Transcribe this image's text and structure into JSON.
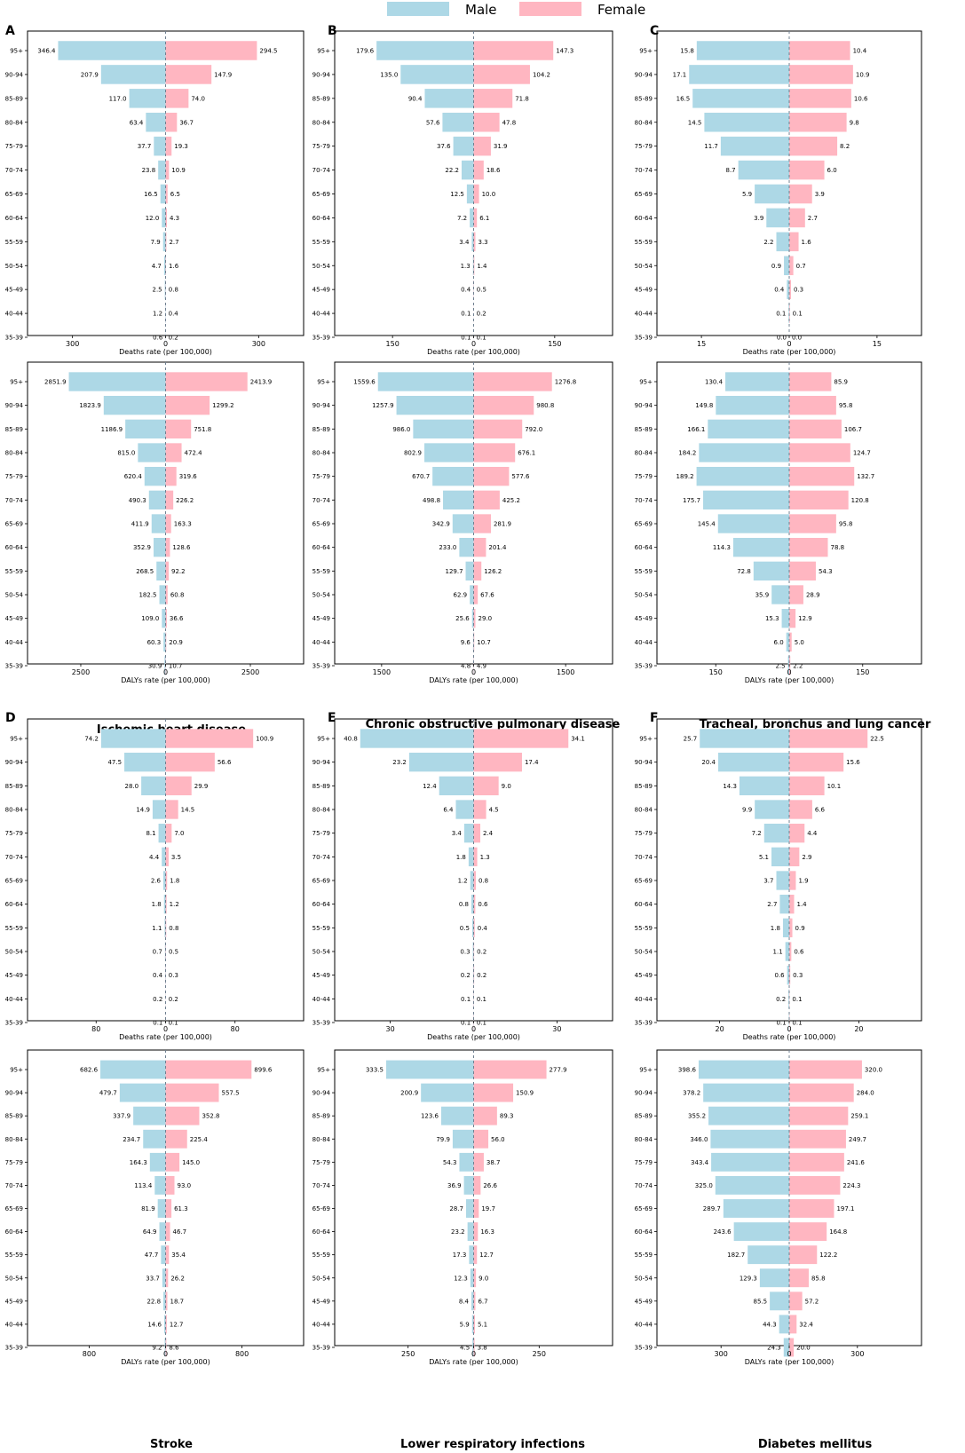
{
  "legend": {
    "placement": "top-center",
    "male_label": "Male",
    "female_label": "Female"
  },
  "colors": {
    "male": "#add8e6",
    "female": "#ffb6c1",
    "center_line": "#708090"
  },
  "age_groups": [
    "95+",
    "90-94",
    "85-89",
    "80-84",
    "75-79",
    "70-74",
    "65-69",
    "60-64",
    "55-59",
    "50-54",
    "45-49",
    "40-44",
    "35-39"
  ],
  "panel_titles": [
    "Ischemic heart disease",
    "Chronic obstructive pulmonary disease",
    "Tracheal, bronchus and lung cancer",
    "Stroke",
    "Lower respiratory infections",
    "Diabetes mellitus"
  ],
  "chart_data": [
    {
      "type": "bar",
      "panel": "A",
      "disease": "Ischemic heart disease",
      "xlabel": "Deaths rate (per 100,000)",
      "xlim": [
        -445,
        445
      ],
      "ticks": [
        "300",
        "0",
        "300"
      ],
      "tick_values": [
        -300,
        0,
        300
      ],
      "male": [
        "346.4",
        "207.9",
        "117.0",
        "63.4",
        "37.7",
        "23.8",
        "16.5",
        "12.0",
        "7.9",
        "4.7",
        "2.5",
        "1.2",
        "0.6"
      ],
      "female": [
        "294.5",
        "147.9",
        "74.0",
        "36.7",
        "19.3",
        "10.9",
        "6.5",
        "4.3",
        "2.7",
        "1.6",
        "0.8",
        "0.4",
        "0.2"
      ]
    },
    {
      "type": "bar",
      "panel": "B",
      "disease": "Chronic obstructive pulmonary disease",
      "xlabel": "Deaths rate (per 100,000)",
      "xlim": [
        -257,
        257
      ],
      "ticks": [
        "150",
        "0",
        "150"
      ],
      "tick_values": [
        -150,
        0,
        150
      ],
      "male": [
        "179.6",
        "135.0",
        "90.4",
        "57.6",
        "37.6",
        "22.2",
        "12.5",
        "7.2",
        "3.4",
        "1.3",
        "0.4",
        "0.1",
        "0.1"
      ],
      "female": [
        "147.3",
        "104.2",
        "71.8",
        "47.8",
        "31.9",
        "18.6",
        "10.0",
        "6.1",
        "3.3",
        "1.4",
        "0.5",
        "0.2",
        "0.1"
      ]
    },
    {
      "type": "bar",
      "panel": "C",
      "disease": "Tracheal, bronchus and lung cancer",
      "xlabel": "Deaths rate (per 100,000)",
      "xlim": [
        -22.6,
        22.6
      ],
      "ticks": [
        "15",
        "0",
        "15"
      ],
      "tick_values": [
        -15,
        0,
        15
      ],
      "male": [
        "15.8",
        "17.1",
        "16.5",
        "14.5",
        "11.7",
        "8.7",
        "5.9",
        "3.9",
        "2.2",
        "0.9",
        "0.4",
        "0.1",
        "0.0"
      ],
      "female": [
        "10.4",
        "10.9",
        "10.6",
        "9.8",
        "8.2",
        "6.0",
        "3.9",
        "2.7",
        "1.6",
        "0.7",
        "0.3",
        "0.1",
        "0.0"
      ]
    },
    {
      "type": "bar",
      "panel": "A",
      "disease": "Ischemic heart disease",
      "xlabel": "DALYs rate (per 100,000)",
      "xlim": [
        -4070,
        4070
      ],
      "ticks": [
        "2500",
        "0",
        "2500"
      ],
      "tick_values": [
        -2500,
        0,
        2500
      ],
      "male": [
        "2851.9",
        "1823.9",
        "1186.9",
        "815.0",
        "620.4",
        "490.3",
        "411.9",
        "352.9",
        "268.5",
        "182.5",
        "109.0",
        "60.3",
        "30.9"
      ],
      "female": [
        "2413.9",
        "1299.2",
        "751.8",
        "472.4",
        "319.6",
        "226.2",
        "163.3",
        "128.6",
        "92.2",
        "60.8",
        "36.6",
        "20.9",
        "10.7"
      ]
    },
    {
      "type": "bar",
      "panel": "B",
      "disease": "Chronic obstructive pulmonary disease",
      "xlabel": "DALYs rate (per 100,000)",
      "xlim": [
        -2265,
        2265
      ],
      "ticks": [
        "1500",
        "0",
        "1500"
      ],
      "tick_values": [
        -1500,
        0,
        1500
      ],
      "male": [
        "1559.6",
        "1257.9",
        "986.0",
        "802.9",
        "670.7",
        "498.8",
        "342.9",
        "233.0",
        "129.7",
        "62.9",
        "25.6",
        "9.6",
        "4.8"
      ],
      "female": [
        "1276.8",
        "980.8",
        "792.0",
        "676.1",
        "577.6",
        "425.2",
        "281.9",
        "201.4",
        "126.2",
        "67.6",
        "29.0",
        "10.7",
        "4.9"
      ]
    },
    {
      "type": "bar",
      "panel": "C",
      "disease": "Tracheal, bronchus and lung cancer",
      "xlabel": "DALYs rate (per 100,000)",
      "xlim": [
        -270,
        270
      ],
      "ticks": [
        "150",
        "0",
        "150"
      ],
      "tick_values": [
        -150,
        0,
        150
      ],
      "male": [
        "130.4",
        "149.8",
        "166.1",
        "184.2",
        "189.2",
        "175.7",
        "145.4",
        "114.3",
        "72.8",
        "35.9",
        "15.3",
        "6.0",
        "2.5"
      ],
      "female": [
        "85.9",
        "95.8",
        "106.7",
        "124.7",
        "132.7",
        "120.8",
        "95.8",
        "78.8",
        "54.3",
        "28.9",
        "12.9",
        "5.0",
        "2.2"
      ]
    },
    {
      "type": "bar",
      "panel": "D",
      "disease": "Stroke",
      "xlabel": "Deaths rate (per 100,000)",
      "xlim": [
        -159,
        159
      ],
      "ticks": [
        "80",
        "0",
        "80"
      ],
      "tick_values": [
        -80,
        0,
        80
      ],
      "male": [
        "74.2",
        "47.5",
        "28.0",
        "14.9",
        "8.1",
        "4.4",
        "2.6",
        "1.8",
        "1.1",
        "0.7",
        "0.4",
        "0.2",
        "0.1"
      ],
      "female": [
        "100.9",
        "56.6",
        "29.9",
        "14.5",
        "7.0",
        "3.5",
        "1.8",
        "1.2",
        "0.8",
        "0.5",
        "0.3",
        "0.2",
        "0.1"
      ]
    },
    {
      "type": "bar",
      "panel": "E",
      "disease": "Lower respiratory infections",
      "xlabel": "Deaths rate (per 100,000)",
      "xlim": [
        -50,
        50
      ],
      "ticks": [
        "30",
        "0",
        "30"
      ],
      "tick_values": [
        -30,
        0,
        30
      ],
      "male": [
        "40.8",
        "23.2",
        "12.4",
        "6.4",
        "3.4",
        "1.8",
        "1.2",
        "0.8",
        "0.5",
        "0.3",
        "0.2",
        "0.1",
        "0.1"
      ],
      "female": [
        "34.1",
        "17.4",
        "9.0",
        "4.5",
        "2.4",
        "1.3",
        "0.8",
        "0.6",
        "0.4",
        "0.2",
        "0.2",
        "0.1",
        "0.1"
      ]
    },
    {
      "type": "bar",
      "panel": "F",
      "disease": "Diabetes mellitus",
      "xlabel": "Deaths rate (per 100,000)",
      "xlim": [
        -38,
        38
      ],
      "ticks": [
        "20",
        "0",
        "20"
      ],
      "tick_values": [
        -20,
        0,
        20
      ],
      "male": [
        "25.7",
        "20.4",
        "14.3",
        "9.9",
        "7.2",
        "5.1",
        "3.7",
        "2.7",
        "1.8",
        "1.1",
        "0.6",
        "0.2",
        "0.1"
      ],
      "female": [
        "22.5",
        "15.6",
        "10.1",
        "6.6",
        "4.4",
        "2.9",
        "1.9",
        "1.4",
        "0.9",
        "0.6",
        "0.3",
        "0.1",
        "0.1"
      ]
    },
    {
      "type": "bar",
      "panel": "D",
      "disease": "Stroke",
      "xlabel": "DALYs rate (per 100,000)",
      "xlim": [
        -1445,
        1445
      ],
      "ticks": [
        "800",
        "0",
        "800"
      ],
      "tick_values": [
        -800,
        0,
        800
      ],
      "male": [
        "682.6",
        "479.7",
        "337.9",
        "234.7",
        "164.3",
        "113.4",
        "81.9",
        "64.9",
        "47.7",
        "33.7",
        "22.8",
        "14.6",
        "9.2"
      ],
      "female": [
        "899.6",
        "557.5",
        "352.8",
        "225.4",
        "145.0",
        "93.0",
        "61.3",
        "46.7",
        "35.4",
        "26.2",
        "18.7",
        "12.7",
        "8.6"
      ]
    },
    {
      "type": "bar",
      "panel": "E",
      "disease": "Lower respiratory infections",
      "xlabel": "DALYs rate (per 100,000)",
      "xlim": [
        -530,
        530
      ],
      "ticks": [
        "250",
        "0",
        "250"
      ],
      "tick_values": [
        -250,
        0,
        250
      ],
      "male": [
        "333.5",
        "200.9",
        "123.6",
        "79.9",
        "54.3",
        "36.9",
        "28.7",
        "23.2",
        "17.3",
        "12.3",
        "8.4",
        "5.9",
        "4.5"
      ],
      "female": [
        "277.9",
        "150.9",
        "89.3",
        "56.0",
        "38.7",
        "26.6",
        "19.7",
        "16.3",
        "12.7",
        "9.0",
        "6.7",
        "5.1",
        "3.8"
      ]
    },
    {
      "type": "bar",
      "panel": "F",
      "disease": "Diabetes mellitus",
      "xlabel": "DALYs rate (per 100,000)",
      "xlim": [
        -582,
        582
      ],
      "ticks": [
        "300",
        "0",
        "300"
      ],
      "tick_values": [
        -300,
        0,
        300
      ],
      "male": [
        "398.6",
        "378.2",
        "355.2",
        "346.0",
        "343.4",
        "325.0",
        "289.7",
        "243.6",
        "182.7",
        "129.3",
        "85.5",
        "44.3",
        "24.3"
      ],
      "female": [
        "320.0",
        "284.0",
        "259.1",
        "249.7",
        "241.6",
        "224.3",
        "197.1",
        "164.8",
        "122.2",
        "85.8",
        "57.2",
        "32.4",
        "20.0"
      ]
    }
  ]
}
